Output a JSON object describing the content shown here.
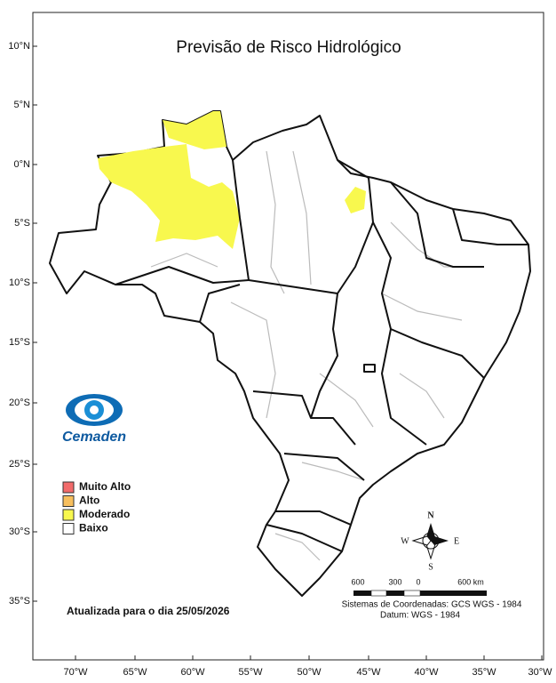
{
  "title": "Previsão de Risco Hidrológico",
  "lat_labels": [
    "10°N",
    "5°N",
    "0°N",
    "5°S",
    "10°S",
    "15°S",
    "20°S",
    "25°S",
    "30°S",
    "35°S"
  ],
  "lon_labels": [
    "70°W",
    "65°W",
    "60°W",
    "55°W",
    "50°W",
    "45°W",
    "40°W",
    "35°W",
    "30°W"
  ],
  "legend": [
    {
      "label": "Muito Alto",
      "color": "#f26b6b"
    },
    {
      "label": "Alto",
      "color": "#f7bf5e"
    },
    {
      "label": "Moderado",
      "color": "#f8f84e"
    },
    {
      "label": "Baixo",
      "color": "#ffffff"
    }
  ],
  "logo": "Cemaden",
  "date_note": "Atualizada para o dia 25/05/2026",
  "compass": {
    "n": "N",
    "s": "S",
    "e": "E",
    "w": "W"
  },
  "scale_labels": [
    "600",
    "300",
    "0",
    "600 km"
  ],
  "coordinate_system": "Sistemas de Coordenadas: GCS WGS - 1984",
  "datum": "Datum: WGS - 1984"
}
